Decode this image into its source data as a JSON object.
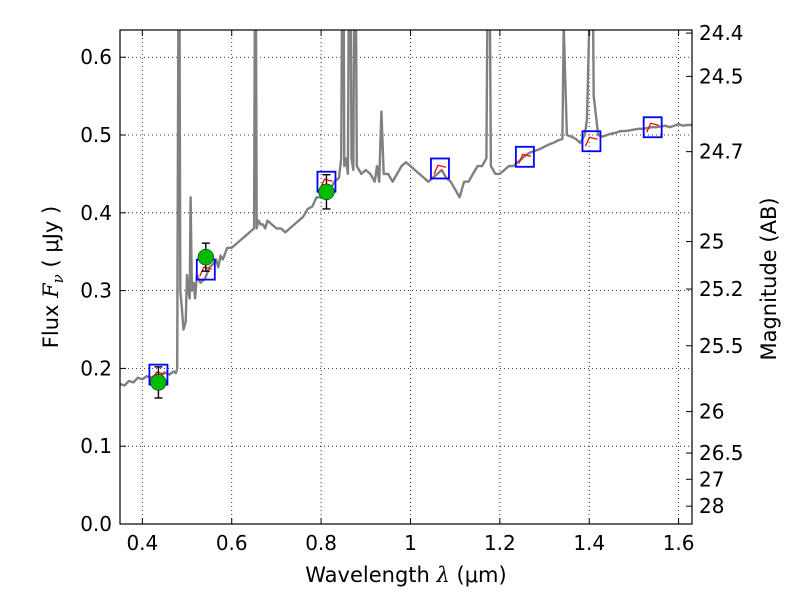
{
  "chart_data": {
    "type": "line",
    "xlabel": "Wavelength  λ (μm)",
    "ylabel": "Flux  F_ν  ( μJy )",
    "y2label": "Magnitude (AB)",
    "xlim": [
      0.35,
      1.63
    ],
    "ylim": [
      0.0,
      0.635
    ],
    "grid": true,
    "grid_style": "dotted",
    "x_ticks": [
      0.4,
      0.6,
      0.8,
      1.0,
      1.2,
      1.4,
      1.6
    ],
    "x_tick_labels": [
      "0.4",
      "0.6",
      "0.8",
      "1",
      "1.2",
      "1.4",
      "1.6"
    ],
    "y_ticks": [
      0.0,
      0.1,
      0.2,
      0.3,
      0.4,
      0.5,
      0.6
    ],
    "y_tick_labels": [
      "0.0",
      "0.1",
      "0.2",
      "0.3",
      "0.4",
      "0.5",
      "0.6"
    ],
    "y2_ticks": [
      {
        "label": "24.4",
        "flux": 0.631
      },
      {
        "label": "24.5",
        "flux": 0.5754
      },
      {
        "label": "24.7",
        "flux": 0.4786
      },
      {
        "label": "25",
        "flux": 0.3631
      },
      {
        "label": "25.2",
        "flux": 0.302
      },
      {
        "label": "25.5",
        "flux": 0.2291
      },
      {
        "label": "26",
        "flux": 0.1445
      },
      {
        "label": "26.5",
        "flux": 0.0912
      },
      {
        "label": "27",
        "flux": 0.0575
      },
      {
        "label": "28",
        "flux": 0.0229
      }
    ],
    "colors": {
      "spectrum": "#808080",
      "model_box": "#0000ff",
      "model_fit": "#ff0000",
      "observed": "#00bb00",
      "errorbar": "#000000"
    },
    "series": [
      {
        "style": "line",
        "color": "#808080",
        "points": [
          [
            0.35,
            0.18
          ],
          [
            0.36,
            0.178
          ],
          [
            0.37,
            0.184
          ],
          [
            0.38,
            0.182
          ],
          [
            0.39,
            0.188
          ],
          [
            0.4,
            0.186
          ],
          [
            0.41,
            0.19
          ],
          [
            0.42,
            0.188
          ],
          [
            0.43,
            0.192
          ],
          [
            0.44,
            0.19
          ],
          [
            0.45,
            0.195
          ],
          [
            0.46,
            0.192
          ],
          [
            0.47,
            0.196
          ],
          [
            0.475,
            0.194
          ],
          [
            0.478,
            0.2
          ],
          [
            0.482,
            0.9
          ],
          [
            0.485,
            0.3
          ],
          [
            0.488,
            0.28
          ],
          [
            0.492,
            0.25
          ],
          [
            0.497,
            0.26
          ],
          [
            0.5,
            0.32
          ],
          [
            0.503,
            0.3
          ],
          [
            0.506,
            0.29
          ],
          [
            0.508,
            0.42
          ],
          [
            0.511,
            0.3
          ],
          [
            0.515,
            0.31
          ],
          [
            0.518,
            0.29
          ],
          [
            0.522,
            0.32
          ],
          [
            0.53,
            0.31
          ],
          [
            0.54,
            0.315
          ],
          [
            0.55,
            0.33
          ],
          [
            0.56,
            0.335
          ],
          [
            0.565,
            0.34
          ],
          [
            0.57,
            0.33
          ],
          [
            0.575,
            0.345
          ],
          [
            0.58,
            0.34
          ],
          [
            0.59,
            0.355
          ],
          [
            0.6,
            0.355
          ],
          [
            0.61,
            0.36
          ],
          [
            0.62,
            0.365
          ],
          [
            0.63,
            0.37
          ],
          [
            0.64,
            0.375
          ],
          [
            0.65,
            0.38
          ],
          [
            0.653,
            0.9
          ],
          [
            0.656,
            0.38
          ],
          [
            0.66,
            0.39
          ],
          [
            0.665,
            0.385
          ],
          [
            0.67,
            0.385
          ],
          [
            0.675,
            0.38
          ],
          [
            0.68,
            0.39
          ],
          [
            0.69,
            0.385
          ],
          [
            0.7,
            0.38
          ],
          [
            0.71,
            0.38
          ],
          [
            0.72,
            0.375
          ],
          [
            0.73,
            0.38
          ],
          [
            0.74,
            0.385
          ],
          [
            0.75,
            0.39
          ],
          [
            0.76,
            0.395
          ],
          [
            0.77,
            0.405
          ],
          [
            0.78,
            0.408
          ],
          [
            0.79,
            0.42
          ],
          [
            0.8,
            0.42
          ],
          [
            0.81,
            0.425
          ],
          [
            0.82,
            0.43
          ],
          [
            0.83,
            0.44
          ],
          [
            0.84,
            0.445
          ],
          [
            0.845,
            0.47
          ],
          [
            0.849,
            0.9
          ],
          [
            0.852,
            0.46
          ],
          [
            0.856,
            0.47
          ],
          [
            0.86,
            0.45
          ],
          [
            0.864,
            0.9
          ],
          [
            0.868,
            0.47
          ],
          [
            0.872,
            0.455
          ],
          [
            0.876,
            0.9
          ],
          [
            0.88,
            0.46
          ],
          [
            0.89,
            0.45
          ],
          [
            0.9,
            0.455
          ],
          [
            0.91,
            0.45
          ],
          [
            0.92,
            0.44
          ],
          [
            0.925,
            0.46
          ],
          [
            0.93,
            0.44
          ],
          [
            0.935,
            0.53
          ],
          [
            0.94,
            0.45
          ],
          [
            0.95,
            0.45
          ],
          [
            0.96,
            0.44
          ],
          [
            0.97,
            0.45
          ],
          [
            0.98,
            0.46
          ],
          [
            0.99,
            0.465
          ],
          [
            1.0,
            0.46
          ],
          [
            1.01,
            0.455
          ],
          [
            1.02,
            0.45
          ],
          [
            1.03,
            0.445
          ],
          [
            1.04,
            0.44
          ],
          [
            1.05,
            0.445
          ],
          [
            1.06,
            0.45
          ],
          [
            1.07,
            0.455
          ],
          [
            1.08,
            0.445
          ],
          [
            1.09,
            0.44
          ],
          [
            1.1,
            0.43
          ],
          [
            1.11,
            0.42
          ],
          [
            1.12,
            0.44
          ],
          [
            1.13,
            0.44
          ],
          [
            1.14,
            0.45
          ],
          [
            1.15,
            0.46
          ],
          [
            1.16,
            0.46
          ],
          [
            1.17,
            0.47
          ],
          [
            1.175,
            0.9
          ],
          [
            1.18,
            0.46
          ],
          [
            1.19,
            0.45
          ],
          [
            1.2,
            0.45
          ],
          [
            1.21,
            0.455
          ],
          [
            1.22,
            0.46
          ],
          [
            1.23,
            0.46
          ],
          [
            1.24,
            0.465
          ],
          [
            1.25,
            0.47
          ],
          [
            1.26,
            0.475
          ],
          [
            1.27,
            0.478
          ],
          [
            1.28,
            0.48
          ],
          [
            1.29,
            0.482
          ],
          [
            1.3,
            0.485
          ],
          [
            1.31,
            0.488
          ],
          [
            1.32,
            0.49
          ],
          [
            1.33,
            0.493
          ],
          [
            1.34,
            0.495
          ],
          [
            1.343,
            0.64
          ],
          [
            1.35,
            0.5
          ],
          [
            1.36,
            0.498
          ],
          [
            1.37,
            0.495
          ],
          [
            1.38,
            0.49
          ],
          [
            1.39,
            0.5
          ],
          [
            1.395,
            0.52
          ],
          [
            1.4,
            0.64
          ],
          [
            1.405,
            0.9
          ],
          [
            1.41,
            0.55
          ],
          [
            1.42,
            0.5
          ],
          [
            1.43,
            0.498
          ],
          [
            1.44,
            0.5
          ],
          [
            1.45,
            0.502
          ],
          [
            1.46,
            0.503
          ],
          [
            1.47,
            0.505
          ],
          [
            1.48,
            0.505
          ],
          [
            1.49,
            0.506
          ],
          [
            1.5,
            0.507
          ],
          [
            1.51,
            0.508
          ],
          [
            1.52,
            0.508
          ],
          [
            1.53,
            0.509
          ],
          [
            1.54,
            0.51
          ],
          [
            1.55,
            0.51
          ],
          [
            1.56,
            0.511
          ],
          [
            1.57,
            0.512
          ],
          [
            1.58,
            0.51
          ],
          [
            1.59,
            0.512
          ],
          [
            1.6,
            0.514
          ],
          [
            1.61,
            0.512
          ],
          [
            1.62,
            0.513
          ],
          [
            1.63,
            0.513
          ]
        ]
      },
      {
        "style": "box-marker",
        "color": "#0000ff",
        "x": [
          0.436,
          0.542,
          0.812,
          1.066,
          1.256,
          1.405,
          1.542
        ],
        "y": [
          0.192,
          0.327,
          0.44,
          0.457,
          0.472,
          0.492,
          0.51
        ]
      },
      {
        "style": "model-segment",
        "color": "#ff0000",
        "x": [
          0.436,
          0.542,
          0.812,
          1.066,
          1.256,
          1.405,
          1.542
        ],
        "y": [
          0.19,
          0.325,
          0.438,
          0.456,
          0.47,
          0.492,
          0.51
        ]
      },
      {
        "style": "errorbar-point",
        "color": "#00bb00",
        "x": [
          0.436,
          0.542,
          0.812
        ],
        "y": [
          0.182,
          0.343,
          0.427
        ],
        "err": [
          0.02,
          0.018,
          0.022
        ]
      }
    ]
  }
}
